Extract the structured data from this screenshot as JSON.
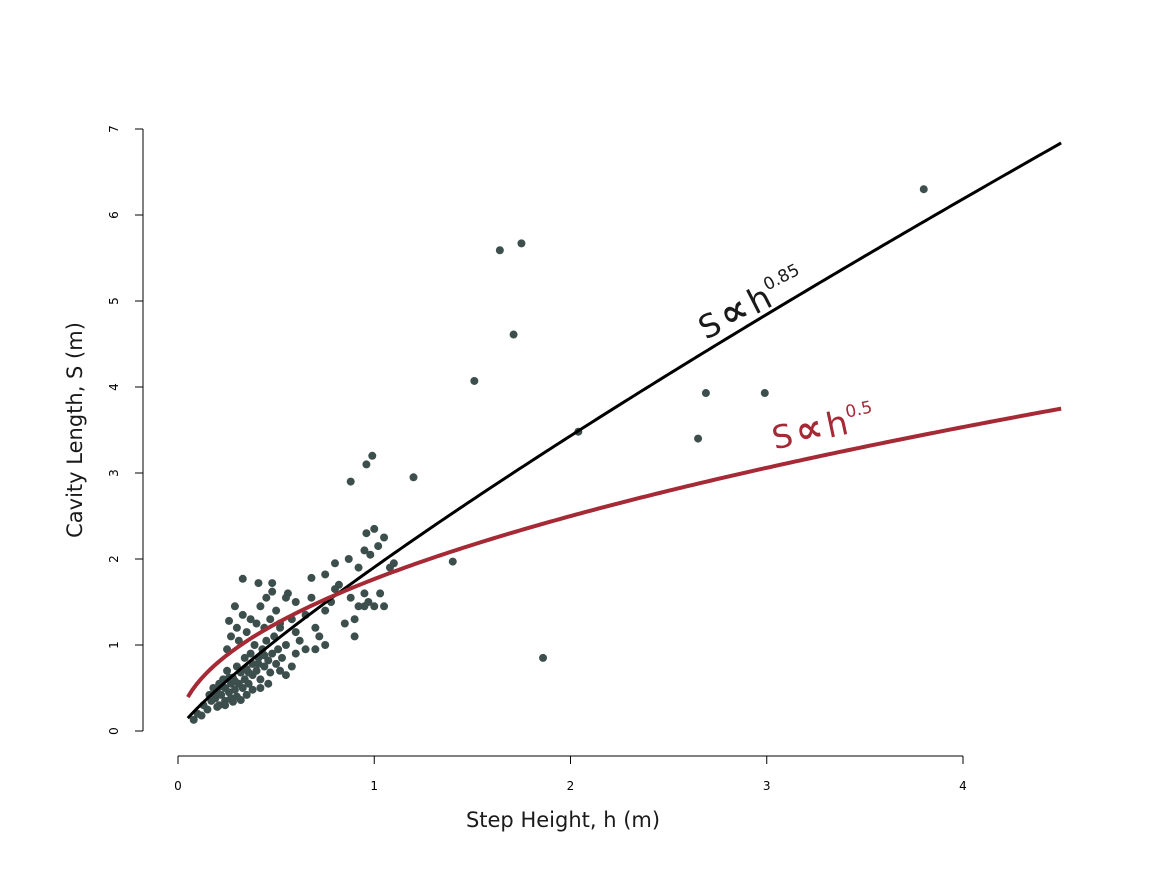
{
  "chart_data": {
    "type": "scatter",
    "xlabel": "Step Height, h (m)",
    "ylabel": "Cavity Length, S (m)",
    "xlim": [
      0,
      4
    ],
    "ylim": [
      0,
      7
    ],
    "x_ticks": [
      0,
      1,
      2,
      3,
      4
    ],
    "y_ticks": [
      0,
      1,
      2,
      3,
      4,
      5,
      6,
      7
    ],
    "x_tick_labels": [
      "0",
      "1",
      "2",
      "3",
      "4"
    ],
    "y_tick_labels": [
      "0",
      "1",
      "2",
      "3",
      "4",
      "5",
      "6",
      "7"
    ],
    "grid": false,
    "legend": "none",
    "colors": {
      "points": "#3d4f4c",
      "fit_085": "#000000",
      "fit_05": "#a52a36"
    },
    "series": [
      {
        "type": "scatter",
        "points": [
          [
            0.08,
            0.13
          ],
          [
            0.1,
            0.2
          ],
          [
            0.12,
            0.18
          ],
          [
            0.13,
            0.3
          ],
          [
            0.15,
            0.25
          ],
          [
            0.16,
            0.42
          ],
          [
            0.17,
            0.35
          ],
          [
            0.18,
            0.5
          ],
          [
            0.19,
            0.38
          ],
          [
            0.2,
            0.45
          ],
          [
            0.21,
            0.3
          ],
          [
            0.21,
            0.55
          ],
          [
            0.22,
            0.42
          ],
          [
            0.23,
            0.6
          ],
          [
            0.24,
            0.35
          ],
          [
            0.24,
            0.5
          ],
          [
            0.25,
            0.7
          ],
          [
            0.26,
            0.45
          ],
          [
            0.27,
            0.55
          ],
          [
            0.27,
            0.38
          ],
          [
            0.28,
            0.62
          ],
          [
            0.29,
            0.48
          ],
          [
            0.3,
            0.75
          ],
          [
            0.3,
            0.4
          ],
          [
            0.31,
            0.55
          ],
          [
            0.32,
            0.68
          ],
          [
            0.33,
            0.5
          ],
          [
            0.34,
            0.85
          ],
          [
            0.34,
            0.6
          ],
          [
            0.35,
            0.72
          ],
          [
            0.36,
            0.55
          ],
          [
            0.37,
            0.9
          ],
          [
            0.38,
            0.65
          ],
          [
            0.38,
            0.78
          ],
          [
            0.39,
            1.0
          ],
          [
            0.4,
            0.7
          ],
          [
            0.41,
            0.85
          ],
          [
            0.42,
            0.6
          ],
          [
            0.43,
            0.95
          ],
          [
            0.44,
            0.75
          ],
          [
            0.45,
            1.05
          ],
          [
            0.46,
            0.82
          ],
          [
            0.47,
            0.68
          ],
          [
            0.48,
            0.9
          ],
          [
            0.49,
            1.1
          ],
          [
            0.5,
            0.78
          ],
          [
            0.51,
            0.95
          ],
          [
            0.52,
            1.2
          ],
          [
            0.53,
            0.85
          ],
          [
            0.55,
            1.0
          ],
          [
            0.25,
            0.95
          ],
          [
            0.27,
            1.1
          ],
          [
            0.26,
            1.28
          ],
          [
            0.3,
            1.2
          ],
          [
            0.31,
            1.05
          ],
          [
            0.33,
            1.35
          ],
          [
            0.35,
            1.15
          ],
          [
            0.37,
            1.3
          ],
          [
            0.4,
            1.25
          ],
          [
            0.42,
            1.45
          ],
          [
            0.44,
            1.2
          ],
          [
            0.45,
            1.55
          ],
          [
            0.47,
            1.3
          ],
          [
            0.48,
            1.62
          ],
          [
            0.5,
            1.4
          ],
          [
            0.52,
            1.25
          ],
          [
            0.55,
            1.55
          ],
          [
            0.58,
            1.3
          ],
          [
            0.6,
            1.15
          ],
          [
            0.62,
            1.05
          ],
          [
            0.29,
            1.45
          ],
          [
            0.33,
            1.77
          ],
          [
            0.41,
            1.72
          ],
          [
            0.48,
            1.72
          ],
          [
            0.56,
            1.6
          ],
          [
            0.6,
            1.5
          ],
          [
            0.65,
            1.35
          ],
          [
            0.68,
            1.55
          ],
          [
            0.7,
            1.2
          ],
          [
            0.72,
            1.1
          ],
          [
            0.75,
            1.4
          ],
          [
            0.78,
            1.5
          ],
          [
            0.8,
            1.65
          ],
          [
            0.82,
            1.7
          ],
          [
            0.85,
            1.25
          ],
          [
            0.88,
            1.55
          ],
          [
            0.9,
            1.3
          ],
          [
            0.92,
            1.45
          ],
          [
            0.95,
            1.6
          ],
          [
            0.97,
            1.5
          ],
          [
            0.68,
            1.78
          ],
          [
            0.75,
            1.82
          ],
          [
            0.8,
            1.95
          ],
          [
            0.87,
            2.0
          ],
          [
            0.92,
            1.9
          ],
          [
            0.95,
            2.1
          ],
          [
            0.96,
            2.3
          ],
          [
            0.98,
            2.05
          ],
          [
            1.0,
            2.35
          ],
          [
            1.02,
            2.15
          ],
          [
            1.05,
            2.25
          ],
          [
            1.08,
            1.9
          ],
          [
            1.1,
            1.95
          ],
          [
            1.03,
            1.6
          ],
          [
            1.05,
            1.45
          ],
          [
            1.0,
            1.45
          ],
          [
            0.95,
            1.45
          ],
          [
            0.9,
            1.1
          ],
          [
            0.75,
            1.0
          ],
          [
            0.7,
            0.95
          ],
          [
            0.65,
            0.95
          ],
          [
            0.6,
            0.9
          ],
          [
            0.58,
            0.75
          ],
          [
            0.55,
            0.65
          ],
          [
            0.52,
            0.7
          ],
          [
            0.46,
            0.55
          ],
          [
            0.42,
            0.5
          ],
          [
            0.38,
            0.48
          ],
          [
            0.35,
            0.42
          ],
          [
            0.32,
            0.36
          ],
          [
            0.28,
            0.34
          ],
          [
            0.24,
            0.3
          ],
          [
            0.2,
            0.28
          ],
          [
            0.18,
            0.4
          ],
          [
            0.22,
            0.52
          ],
          [
            0.26,
            0.62
          ],
          [
            0.29,
            0.58
          ],
          [
            0.36,
            0.68
          ],
          [
            0.41,
            0.78
          ],
          [
            0.44,
            0.88
          ],
          [
            0.88,
            2.9
          ],
          [
            0.96,
            3.1
          ],
          [
            0.99,
            3.2
          ],
          [
            1.2,
            2.95
          ],
          [
            1.4,
            1.97
          ],
          [
            1.51,
            4.07
          ],
          [
            1.64,
            5.59
          ],
          [
            1.71,
            4.61
          ],
          [
            1.75,
            5.67
          ],
          [
            1.86,
            0.85
          ],
          [
            2.04,
            3.48
          ],
          [
            2.65,
            3.4
          ],
          [
            2.69,
            3.93
          ],
          [
            2.99,
            3.93
          ],
          [
            3.8,
            6.3
          ]
        ]
      },
      {
        "type": "line",
        "formula": "S ∝ h^0.85",
        "coefficient": 1.904,
        "exponent": 0.85,
        "x_range": [
          0.05,
          4.5
        ]
      },
      {
        "type": "line",
        "formula": "S ∝ h^0.5",
        "coefficient": 1.767,
        "exponent": 0.5,
        "x_range": [
          0.05,
          4.5
        ]
      }
    ],
    "annotations": [
      {
        "base": "S",
        "symbol": "∝",
        "var": "h",
        "exp": "0.85",
        "at": [
          2.95,
          4.85
        ],
        "color": "#1a1a1a"
      },
      {
        "base": "S",
        "symbol": "∝",
        "var": "h",
        "exp": "0.5",
        "at": [
          3.3,
          3.4
        ],
        "color": "#a52a36"
      }
    ]
  }
}
